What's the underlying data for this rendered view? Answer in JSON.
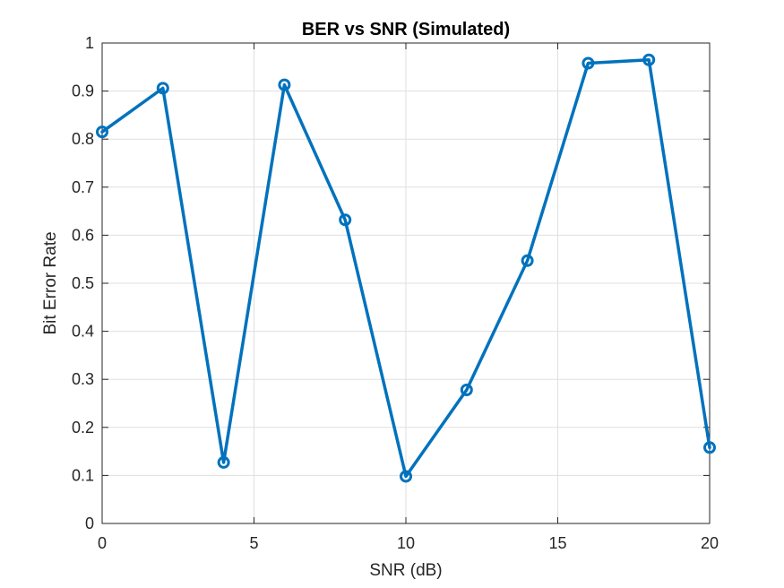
{
  "chart_data": {
    "type": "line",
    "title": "BER vs SNR (Simulated)",
    "xlabel": "SNR (dB)",
    "ylabel": "Bit Error Rate",
    "xlim": [
      0,
      20
    ],
    "ylim": [
      0,
      1
    ],
    "xticks": [
      0,
      5,
      10,
      15,
      20
    ],
    "xtick_labels": [
      "0",
      "5",
      "10",
      "15",
      "20"
    ],
    "yticks": [
      0,
      0.1,
      0.2,
      0.3,
      0.4,
      0.5,
      0.6,
      0.7,
      0.8,
      0.9,
      1
    ],
    "ytick_labels": [
      "0",
      "0.1",
      "0.2",
      "0.3",
      "0.4",
      "0.5",
      "0.6",
      "0.7",
      "0.8",
      "0.9",
      "1"
    ],
    "grid": true,
    "series": [
      {
        "color": "#0072bd",
        "marker": "circle",
        "x": [
          0,
          2,
          4,
          6,
          8,
          10,
          12,
          14,
          16,
          18,
          20
        ],
        "y": [
          0.815,
          0.906,
          0.127,
          0.913,
          0.632,
          0.098,
          0.278,
          0.547,
          0.958,
          0.965,
          0.158
        ]
      }
    ]
  }
}
